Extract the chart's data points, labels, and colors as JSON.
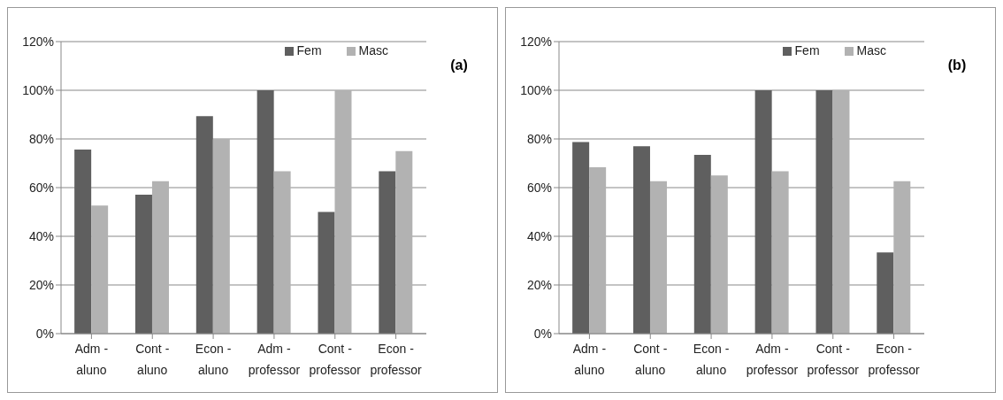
{
  "chart_data": [
    {
      "type": "bar",
      "annotations": [
        "(a)"
      ],
      "categories": [
        "Adm - aluno",
        "Cont - aluno",
        "Econ - aluno",
        "Adm - professor",
        "Cont - professor",
        "Econ - professor"
      ],
      "series": [
        {
          "name": "Fem",
          "color": "#5f5f5f",
          "values": [
            75.6,
            57.1,
            89.4,
            100,
            50,
            66.7
          ]
        },
        {
          "name": "Masc",
          "color": "#b2b2b2",
          "values": [
            52.6,
            62.6,
            80,
            66.7,
            100,
            75
          ]
        }
      ],
      "ylim": [
        0,
        120
      ],
      "yticks": [
        {
          "value": 0,
          "label": "0%"
        },
        {
          "value": 20,
          "label": "20%"
        },
        {
          "value": 40,
          "label": "40%"
        },
        {
          "value": 60,
          "label": "60%"
        },
        {
          "value": 80,
          "label": "80%"
        },
        {
          "value": 100,
          "label": "100%"
        },
        {
          "value": 120,
          "label": "120%"
        }
      ],
      "grid": "y",
      "legend": "top right"
    },
    {
      "type": "bar",
      "annotations": [
        "(b)"
      ],
      "categories": [
        "Adm - aluno",
        "Cont - aluno",
        "Econ - aluno",
        "Adm - professor",
        "Cont - professor",
        "Econ - professor"
      ],
      "series": [
        {
          "name": "Fem",
          "color": "#5f5f5f",
          "values": [
            78.7,
            77,
            73.5,
            100,
            100,
            33.4
          ]
        },
        {
          "name": "Masc",
          "color": "#b2b2b2",
          "values": [
            68.4,
            62.6,
            65,
            66.7,
            100,
            62.6
          ]
        }
      ],
      "ylim": [
        0,
        120
      ],
      "yticks": [
        {
          "value": 0,
          "label": "0%"
        },
        {
          "value": 20,
          "label": "20%"
        },
        {
          "value": 40,
          "label": "40%"
        },
        {
          "value": 60,
          "label": "60%"
        },
        {
          "value": 80,
          "label": "80%"
        },
        {
          "value": 100,
          "label": "100%"
        },
        {
          "value": 120,
          "label": "120%"
        }
      ],
      "grid": "y",
      "legend": "top right"
    }
  ]
}
